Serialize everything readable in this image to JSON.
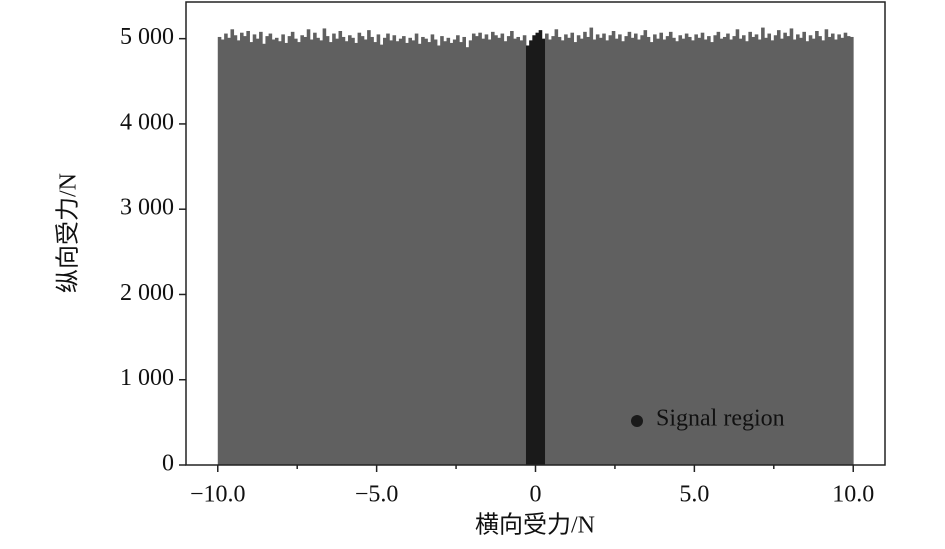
{
  "chart_data": {
    "type": "histogram",
    "xlabel": "横向受力/N",
    "ylabel": "纵向受力/N",
    "xlim": [
      -11,
      11
    ],
    "ylim": [
      0,
      5430
    ],
    "xticks": [
      {
        "value": -10,
        "label": "−10.0"
      },
      {
        "value": -5,
        "label": "−5.0"
      },
      0,
      {
        "value": 5,
        "label": "5.0"
      },
      {
        "value": 10,
        "label": "10.0"
      }
    ],
    "xminorticks": [
      -7.5,
      -2.5,
      2.5,
      7.5
    ],
    "yticks": [
      0,
      {
        "value": 1000,
        "label": "1 000"
      },
      {
        "value": 2000,
        "label": "2 000"
      },
      {
        "value": 3000,
        "label": "3 000"
      },
      {
        "value": 4000,
        "label": "4 000"
      },
      {
        "value": 5000,
        "label": "5 000"
      }
    ],
    "color": "#606060",
    "highlight": {
      "name": "Signal region",
      "color": "#1a1a1a",
      "range": [
        -0.3,
        0.3
      ]
    },
    "bins": [
      -10,
      -9.9,
      -9.8,
      -9.7,
      -9.6,
      -9.5,
      -9.4,
      -9.3,
      -9.2,
      -9.1,
      -9,
      -8.9,
      -8.8,
      -8.7,
      -8.6,
      -8.5,
      -8.4,
      -8.3,
      -8.2,
      -8.1,
      -8,
      -7.9,
      -7.8,
      -7.7,
      -7.6,
      -7.5,
      -7.4,
      -7.3,
      -7.2,
      -7.1,
      -7,
      -6.9,
      -6.8,
      -6.7,
      -6.6,
      -6.5,
      -6.4,
      -6.3,
      -6.2,
      -6.1,
      -6,
      -5.9,
      -5.8,
      -5.7,
      -5.6,
      -5.5,
      -5.4,
      -5.3,
      -5.2,
      -5.1,
      -5,
      -4.9,
      -4.8,
      -4.7,
      -4.6,
      -4.5,
      -4.4,
      -4.3,
      -4.2,
      -4.1,
      -4,
      -3.9,
      -3.8,
      -3.7,
      -3.6,
      -3.5,
      -3.4,
      -3.3,
      -3.2,
      -3.1,
      -3,
      -2.9,
      -2.8,
      -2.7,
      -2.6,
      -2.5,
      -2.4,
      -2.3,
      -2.2,
      -2.1,
      -2,
      -1.9,
      -1.8,
      -1.7,
      -1.6,
      -1.5,
      -1.4,
      -1.3,
      -1.2,
      -1.1,
      -1,
      -0.9,
      -0.8,
      -0.7,
      -0.6,
      -0.5,
      -0.4,
      -0.3,
      -0.2,
      -0.1,
      0,
      0.1,
      0.2,
      0.3,
      0.4,
      0.5,
      0.6,
      0.7,
      0.8,
      0.9,
      1,
      1.1,
      1.2,
      1.3,
      1.4,
      1.5,
      1.6,
      1.7,
      1.8,
      1.9,
      2,
      2.1,
      2.2,
      2.3,
      2.4,
      2.5,
      2.6,
      2.7,
      2.8,
      2.9,
      3,
      3.1,
      3.2,
      3.3,
      3.4,
      3.5,
      3.6,
      3.7,
      3.8,
      3.9,
      4,
      4.1,
      4.2,
      4.3,
      4.4,
      4.5,
      4.6,
      4.7,
      4.8,
      4.9,
      5,
      5.1,
      5.2,
      5.3,
      5.4,
      5.5,
      5.6,
      5.7,
      5.8,
      5.9,
      6,
      6.1,
      6.2,
      6.3,
      6.4,
      6.5,
      6.6,
      6.7,
      6.8,
      6.9,
      7,
      7.1,
      7.2,
      7.3,
      7.4,
      7.5,
      7.6,
      7.7,
      7.8,
      7.9,
      8,
      8.1,
      8.2,
      8.3,
      8.4,
      8.5,
      8.6,
      8.7,
      8.8,
      8.9,
      9,
      9.1,
      9.2,
      9.3,
      9.4,
      9.5,
      9.6,
      9.7,
      9.8,
      9.9,
      10
    ],
    "counts": [
      5020,
      4990,
      5060,
      5010,
      5110,
      5040,
      4980,
      5070,
      5030,
      5090,
      4960,
      5050,
      5000,
      5080,
      4940,
      5030,
      5060,
      4990,
      5010,
      4970,
      5050,
      4950,
      5030,
      5080,
      5000,
      4960,
      5040,
      5020,
      5110,
      4990,
      5070,
      5010,
      4980,
      5120,
      5030,
      4960,
      5060,
      5000,
      5090,
      5020,
      4970,
      5040,
      5010,
      4950,
      5070,
      5030,
      4990,
      5100,
      5020,
      4960,
      5050,
      4930,
      5010,
      5060,
      4980,
      5040,
      4970,
      5000,
      5030,
      4950,
      5010,
      4980,
      5060,
      4940,
      5020,
      5000,
      4960,
      5050,
      4990,
      4920,
      5030,
      4970,
      5010,
      4950,
      4990,
      5040,
      4960,
      5020,
      4900,
      4980,
      5060,
      5030,
      5070,
      5000,
      5050,
      4990,
      5080,
      5040,
      5010,
      5060,
      4970,
      5030,
      5090,
      5000,
      5020,
      4980,
      5040,
      4920,
      4980,
      5040,
      5070,
      5100,
      5000,
      5060,
      4990,
      5030,
      5110,
      5020,
      4980,
      5050,
      5010,
      5070,
      4960,
      5040,
      5000,
      5080,
      5020,
      5130,
      4990,
      5050,
      5010,
      5060,
      4980,
      5040,
      5090,
      5000,
      5050,
      4970,
      5030,
      5080,
      5010,
      5060,
      4990,
      5040,
      5100,
      5020,
      4960,
      5050,
      5000,
      5070,
      4990,
      5030,
      5080,
      5010,
      4970,
      5040,
      5000,
      5060,
      5020,
      4980,
      5050,
      5010,
      5070,
      4990,
      5030,
      4960,
      5040,
      5080,
      5000,
      5020,
      5060,
      4990,
      5030,
      5110,
      5000,
      5040,
      4970,
      5080,
      5020,
      5050,
      4990,
      5130,
      5010,
      5060,
      4980,
      5040,
      5100,
      5000,
      5070,
      5030,
      5120,
      4990,
      5050,
      5010,
      5080,
      4970,
      5040,
      5000,
      5090,
      5030,
      4980,
      5110,
      5020,
      5060,
      4990,
      5050,
      5010,
      5070,
      5030,
      5020
    ]
  }
}
